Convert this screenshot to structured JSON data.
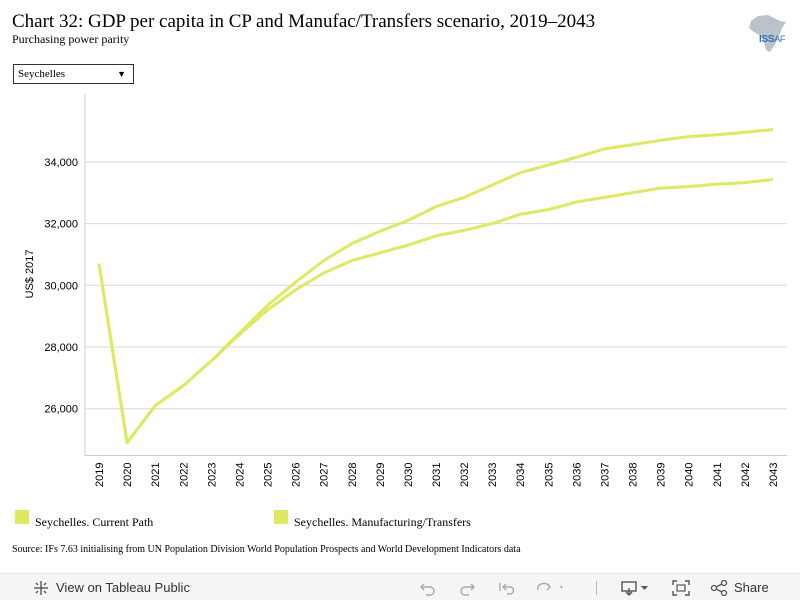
{
  "header": {
    "title": "Chart 32: GDP per capita in CP and Manufac/Transfers scenario, 2019–2043",
    "subtitle": "Purchasing power parity",
    "logo_text": "ISS",
    "logo_suffix": "AF"
  },
  "filter": {
    "selected": "Seychelles"
  },
  "chart_data": {
    "type": "line",
    "ylabel": "US$ 2017",
    "xlabel": "",
    "ylim": [
      24500,
      36200
    ],
    "yticks": [
      26000,
      28000,
      30000,
      32000,
      34000
    ],
    "ytick_labels": [
      "26,000",
      "28,000",
      "30,000",
      "32,000",
      "34,000"
    ],
    "grid": true,
    "legend_position": "bottom",
    "x": [
      "2019",
      "2020",
      "2021",
      "2022",
      "2023",
      "2024",
      "2025",
      "2026",
      "2027",
      "2028",
      "2029",
      "2030",
      "2031",
      "2032",
      "2033",
      "2034",
      "2035",
      "2036",
      "2037",
      "2038",
      "2039",
      "2040",
      "2041",
      "2042",
      "2043"
    ],
    "series": [
      {
        "name": "Seychelles. Current Path",
        "color": "#dfe862",
        "values": [
          30700,
          24900,
          26100,
          26750,
          27550,
          28400,
          29200,
          29850,
          30400,
          30800,
          31050,
          31300,
          31600,
          31780,
          32000,
          32300,
          32450,
          32700,
          32850,
          33000,
          33150,
          33200,
          33280,
          33330,
          33430
        ]
      },
      {
        "name": "Seychelles. Manufacturing/Transfers",
        "color": "#dfe862",
        "values": [
          30700,
          24900,
          26100,
          26750,
          27550,
          28450,
          29350,
          30100,
          30800,
          31350,
          31750,
          32100,
          32550,
          32850,
          33250,
          33650,
          33900,
          34150,
          34420,
          34560,
          34700,
          34820,
          34880,
          34960,
          35050
        ]
      }
    ]
  },
  "legend": {
    "items": [
      {
        "label": "Seychelles. Current Path",
        "color": "#dfe862"
      },
      {
        "label": "Seychelles. Manufacturing/Transfers",
        "color": "#dfe862"
      }
    ]
  },
  "source": {
    "text": "Source: IFs 7.63 initialising from UN Population Division World Population Prospects and World Development Indicators data"
  },
  "toolbar": {
    "view_label": "View on Tableau Public",
    "share_label": "Share",
    "icons": [
      "tableau-logo-icon",
      "undo-icon",
      "redo-icon",
      "revert-icon",
      "refresh-icon",
      "download-icon",
      "fullscreen-icon",
      "share-icon"
    ]
  }
}
